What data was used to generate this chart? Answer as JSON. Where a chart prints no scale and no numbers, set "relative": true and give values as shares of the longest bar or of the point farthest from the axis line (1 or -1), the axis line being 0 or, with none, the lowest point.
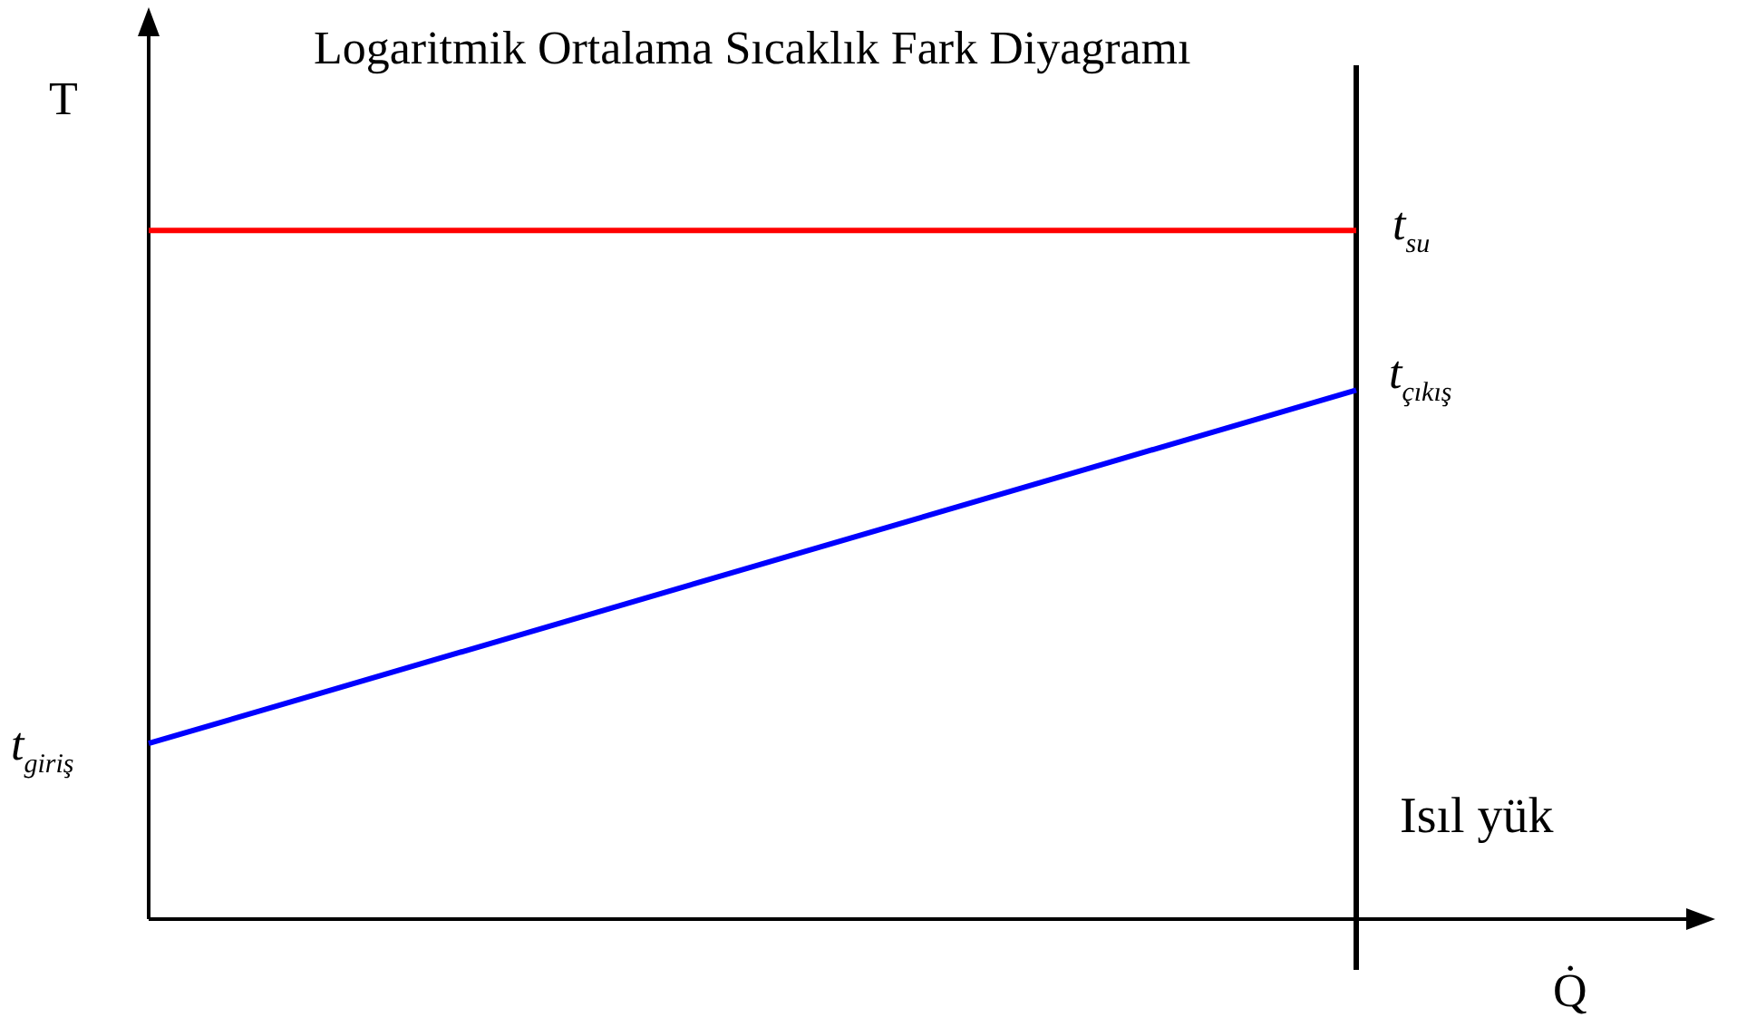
{
  "chart_data": {
    "type": "line",
    "title": "Logaritmik Ortalama Sıcaklık Fark Diyagramı",
    "xlabel": "Q̇",
    "ylabel": "T",
    "relative": true,
    "categories": [
      null,
      null
    ],
    "legend": false,
    "marker": "none",
    "line_style": "solid",
    "series": [
      {
        "color": "#ff0000",
        "values": [
          1,
          1
        ]
      },
      {
        "color": "#0000ff",
        "values": [
          0.255,
          0.768
        ]
      }
    ],
    "annotations": [
      "t$_{su}$",
      "t$_{çıkış}$",
      "t$_{giriş}$",
      "Isıl yük"
    ]
  }
}
